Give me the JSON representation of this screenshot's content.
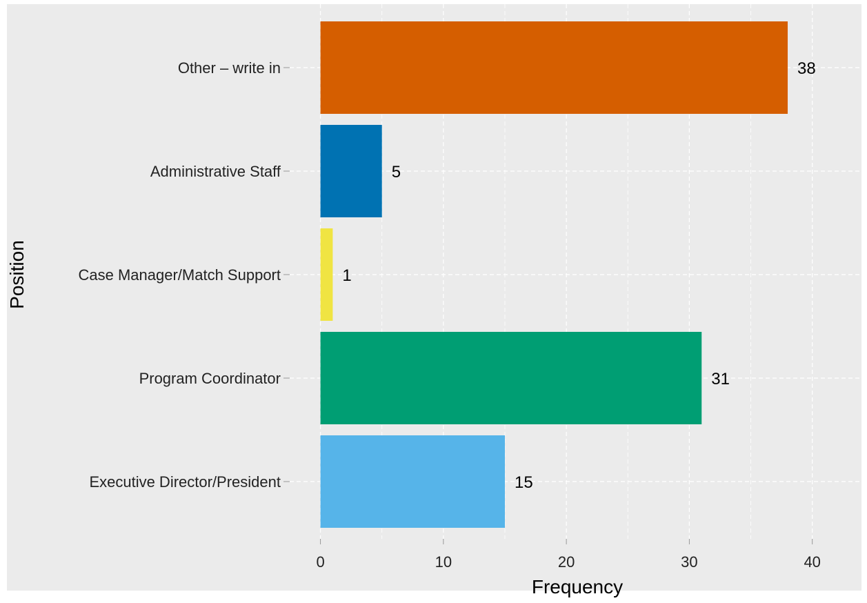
{
  "chart_data": {
    "type": "bar",
    "orientation": "horizontal",
    "title": "",
    "xlabel": "Frequency",
    "ylabel": "Position",
    "categories": [
      "Other – write in",
      "Administrative Staff",
      "Case Manager/Match Support",
      "Program Coordinator",
      "Executive Director/President"
    ],
    "values": [
      38,
      5,
      1,
      31,
      15
    ],
    "bar_colors": [
      "#D55E00",
      "#0072B2",
      "#F0E442",
      "#009E73",
      "#56B4E9"
    ],
    "data_labels": [
      "38",
      "5",
      "1",
      "31",
      "15"
    ],
    "x_ticks": [
      0,
      10,
      20,
      30,
      40
    ],
    "x_tick_labels": [
      "0",
      "10",
      "20",
      "30",
      "40"
    ],
    "xlim": [
      -2.5,
      44
    ],
    "grid": true,
    "legend": "none",
    "background_color": "#EBEBEB",
    "grid_color": "#FFFFFF"
  }
}
